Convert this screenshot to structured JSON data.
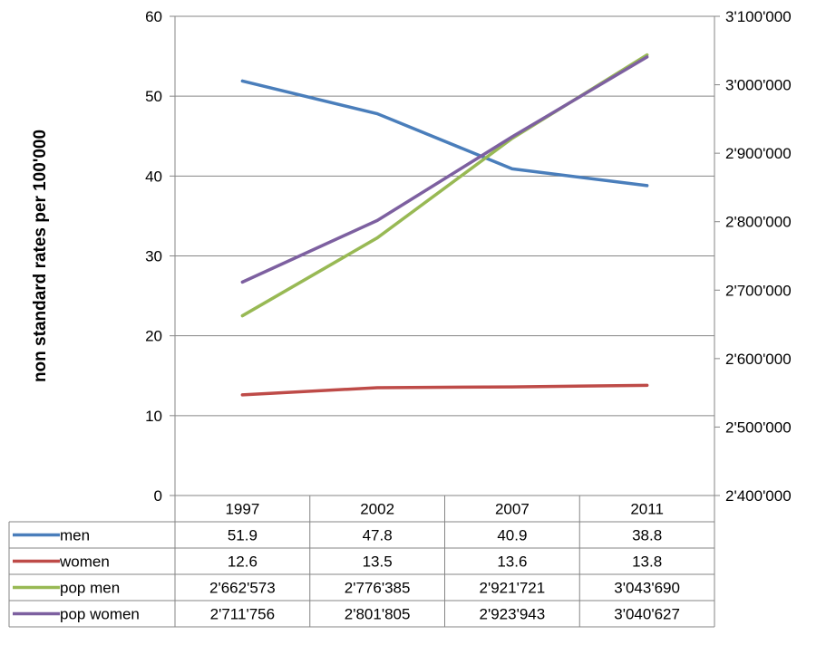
{
  "chart_data": {
    "type": "line",
    "categories": [
      "1997",
      "2002",
      "2007",
      "2011"
    ],
    "ylabel": "non standard rates per 100'000",
    "ylim": [
      0,
      60
    ],
    "y_ticks": [
      "0",
      "10",
      "20",
      "30",
      "40",
      "50",
      "60"
    ],
    "y2lim": [
      2400000,
      3100000
    ],
    "y2_ticks": [
      "2'400'000",
      "2'500'000",
      "2'600'000",
      "2'700'000",
      "2'800'000",
      "2'900'000",
      "3'000'000",
      "3'100'000"
    ],
    "grid": true,
    "legend": "data-table",
    "series": [
      {
        "name": "men",
        "axis": "left",
        "color": "#4a7ebb",
        "values": [
          51.9,
          47.8,
          40.9,
          38.8
        ],
        "labels": [
          "51.9",
          "47.8",
          "40.9",
          "38.8"
        ]
      },
      {
        "name": "women",
        "axis": "left",
        "color": "#be4b48",
        "values": [
          12.6,
          13.5,
          13.6,
          13.8
        ],
        "labels": [
          "12.6",
          "13.5",
          "13.6",
          "13.8"
        ]
      },
      {
        "name": "pop men",
        "axis": "right",
        "color": "#98b954",
        "values": [
          2662573,
          2776385,
          2921721,
          3043690
        ],
        "labels": [
          "2'662'573",
          "2'776'385",
          "2'921'721",
          "3'043'690"
        ]
      },
      {
        "name": "pop women",
        "axis": "right",
        "color": "#7d60a0",
        "values": [
          2711756,
          2801805,
          2923943,
          3040627
        ],
        "labels": [
          "2'711'756",
          "2'801'805",
          "2'923'943",
          "3'040'627"
        ]
      }
    ]
  }
}
